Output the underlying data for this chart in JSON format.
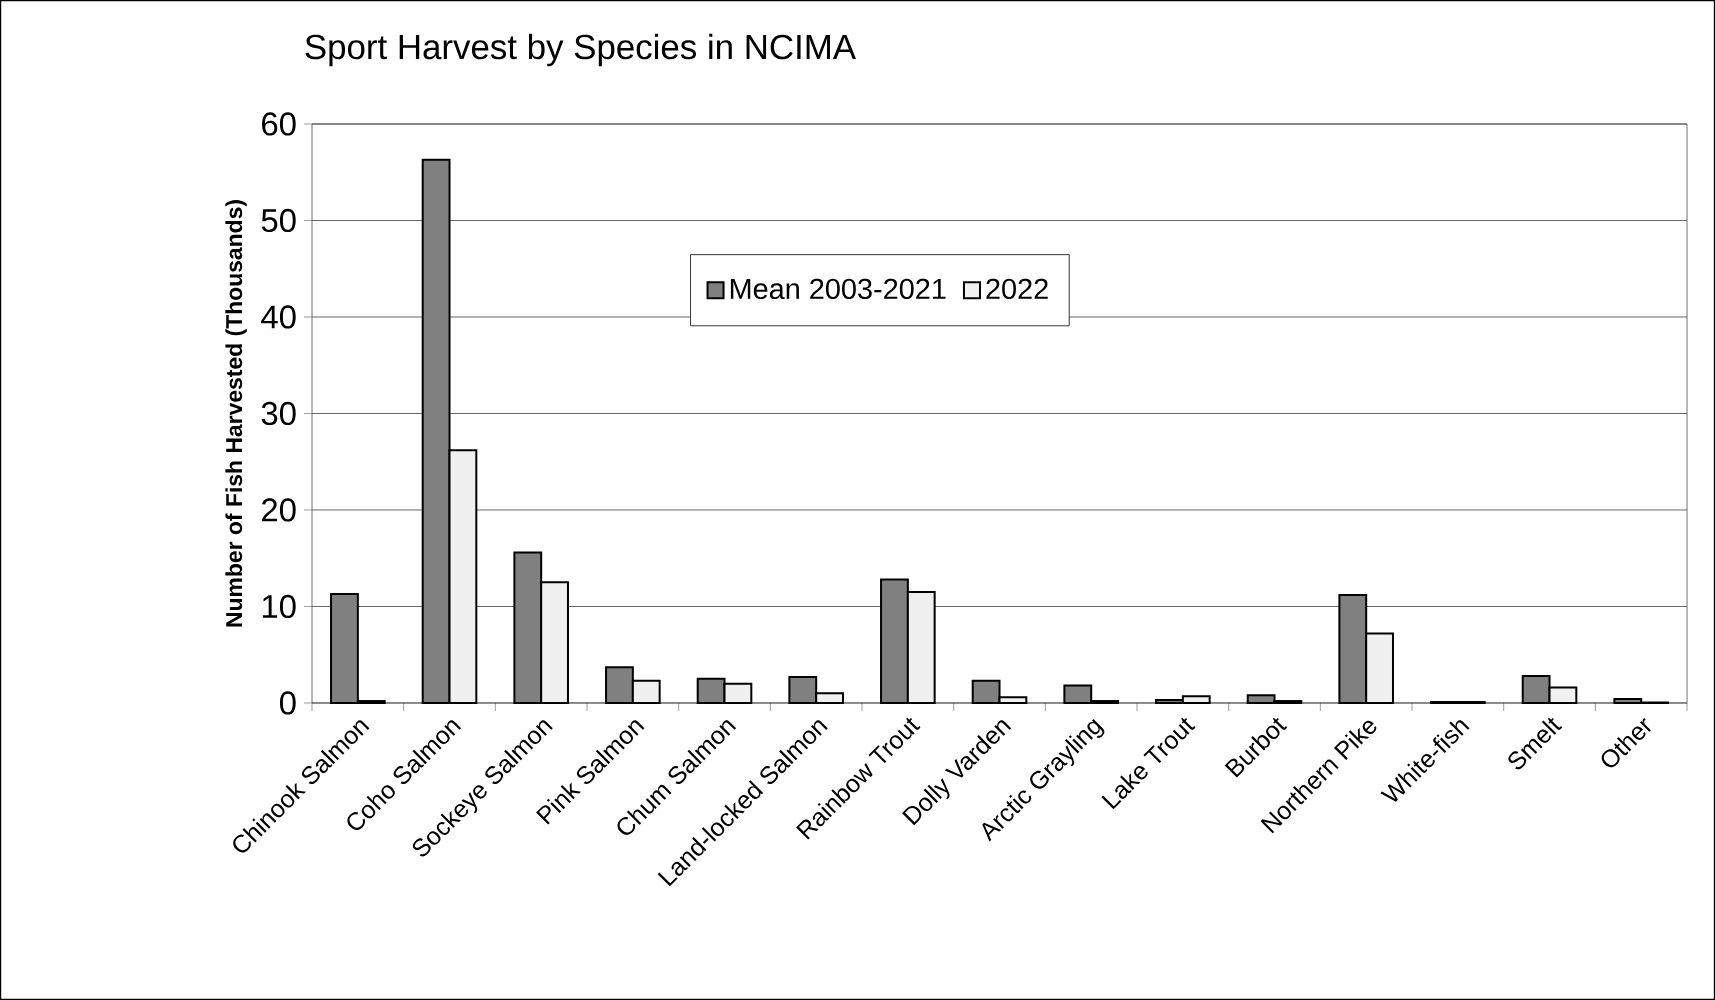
{
  "chart_data": {
    "type": "bar",
    "title": "Sport Harvest by Species in NCIMA",
    "ylabel": "Number of Fish Harvested (Thousands)",
    "categories": [
      "Chinook Salmon",
      "Coho Salmon",
      "Sockeye Salmon",
      "Pink Salmon",
      "Chum Salmon",
      "Land-locked Salmon",
      "Rainbow Trout",
      "Dolly Varden",
      "Arctic Grayling",
      "Lake Trout",
      "Burbot",
      "Northern Pike",
      "White-fish",
      "Smelt",
      "Other"
    ],
    "series": [
      {
        "name": "Mean 2003-2021",
        "color": "#808080",
        "values": [
          11.3,
          56.3,
          15.6,
          3.7,
          2.5,
          2.7,
          12.8,
          2.3,
          1.8,
          0.3,
          0.8,
          11.2,
          0.1,
          2.8,
          0.4
        ]
      },
      {
        "name": "2022",
        "color": "#f0f0f0",
        "values": [
          0.2,
          26.2,
          12.5,
          2.3,
          2.0,
          1.0,
          11.5,
          0.6,
          0.2,
          0.7,
          0.2,
          7.2,
          0.1,
          1.6,
          0.05
        ]
      }
    ],
    "ylim": [
      0,
      60
    ],
    "yticks": [
      0,
      10,
      20,
      30,
      40,
      50,
      60
    ],
    "grid": "y",
    "legend": "top"
  }
}
